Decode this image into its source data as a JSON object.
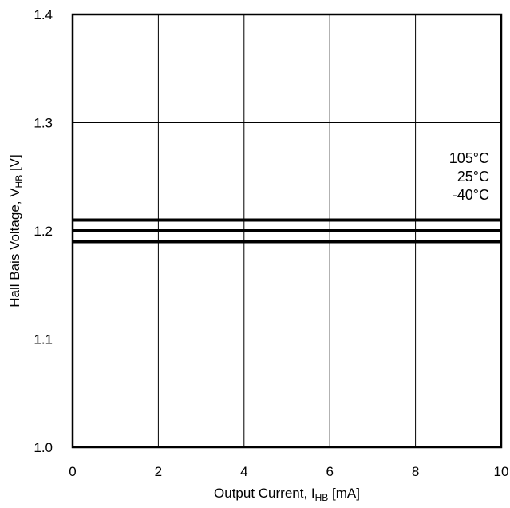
{
  "chart_data": {
    "type": "line",
    "title": "",
    "xlabel": {
      "prefix": "Output Current, I",
      "sub": "HB",
      "suffix": " [mA]"
    },
    "ylabel": {
      "prefix": "Hall Bais Voltage, V",
      "sub": "HB",
      "suffix": " [V]"
    },
    "xlim": [
      0,
      10
    ],
    "ylim": [
      1.0,
      1.4
    ],
    "xticks": [
      "0",
      "2",
      "4",
      "6",
      "8",
      "10"
    ],
    "yticks": [
      "1.0",
      "1.1",
      "1.2",
      "1.3",
      "1.4"
    ],
    "grid": true,
    "legend": {
      "placement": "right",
      "entries": [
        "105°C",
        "25°C",
        "-40°C"
      ]
    },
    "series": [
      {
        "name": "105°C",
        "x": [
          0,
          10
        ],
        "y": [
          1.21,
          1.21
        ],
        "color": "#000000"
      },
      {
        "name": "25°C",
        "x": [
          0,
          10
        ],
        "y": [
          1.2,
          1.2
        ],
        "color": "#000000"
      },
      {
        "name": "-40°C",
        "x": [
          0,
          10
        ],
        "y": [
          1.19,
          1.19
        ],
        "color": "#000000"
      }
    ]
  }
}
